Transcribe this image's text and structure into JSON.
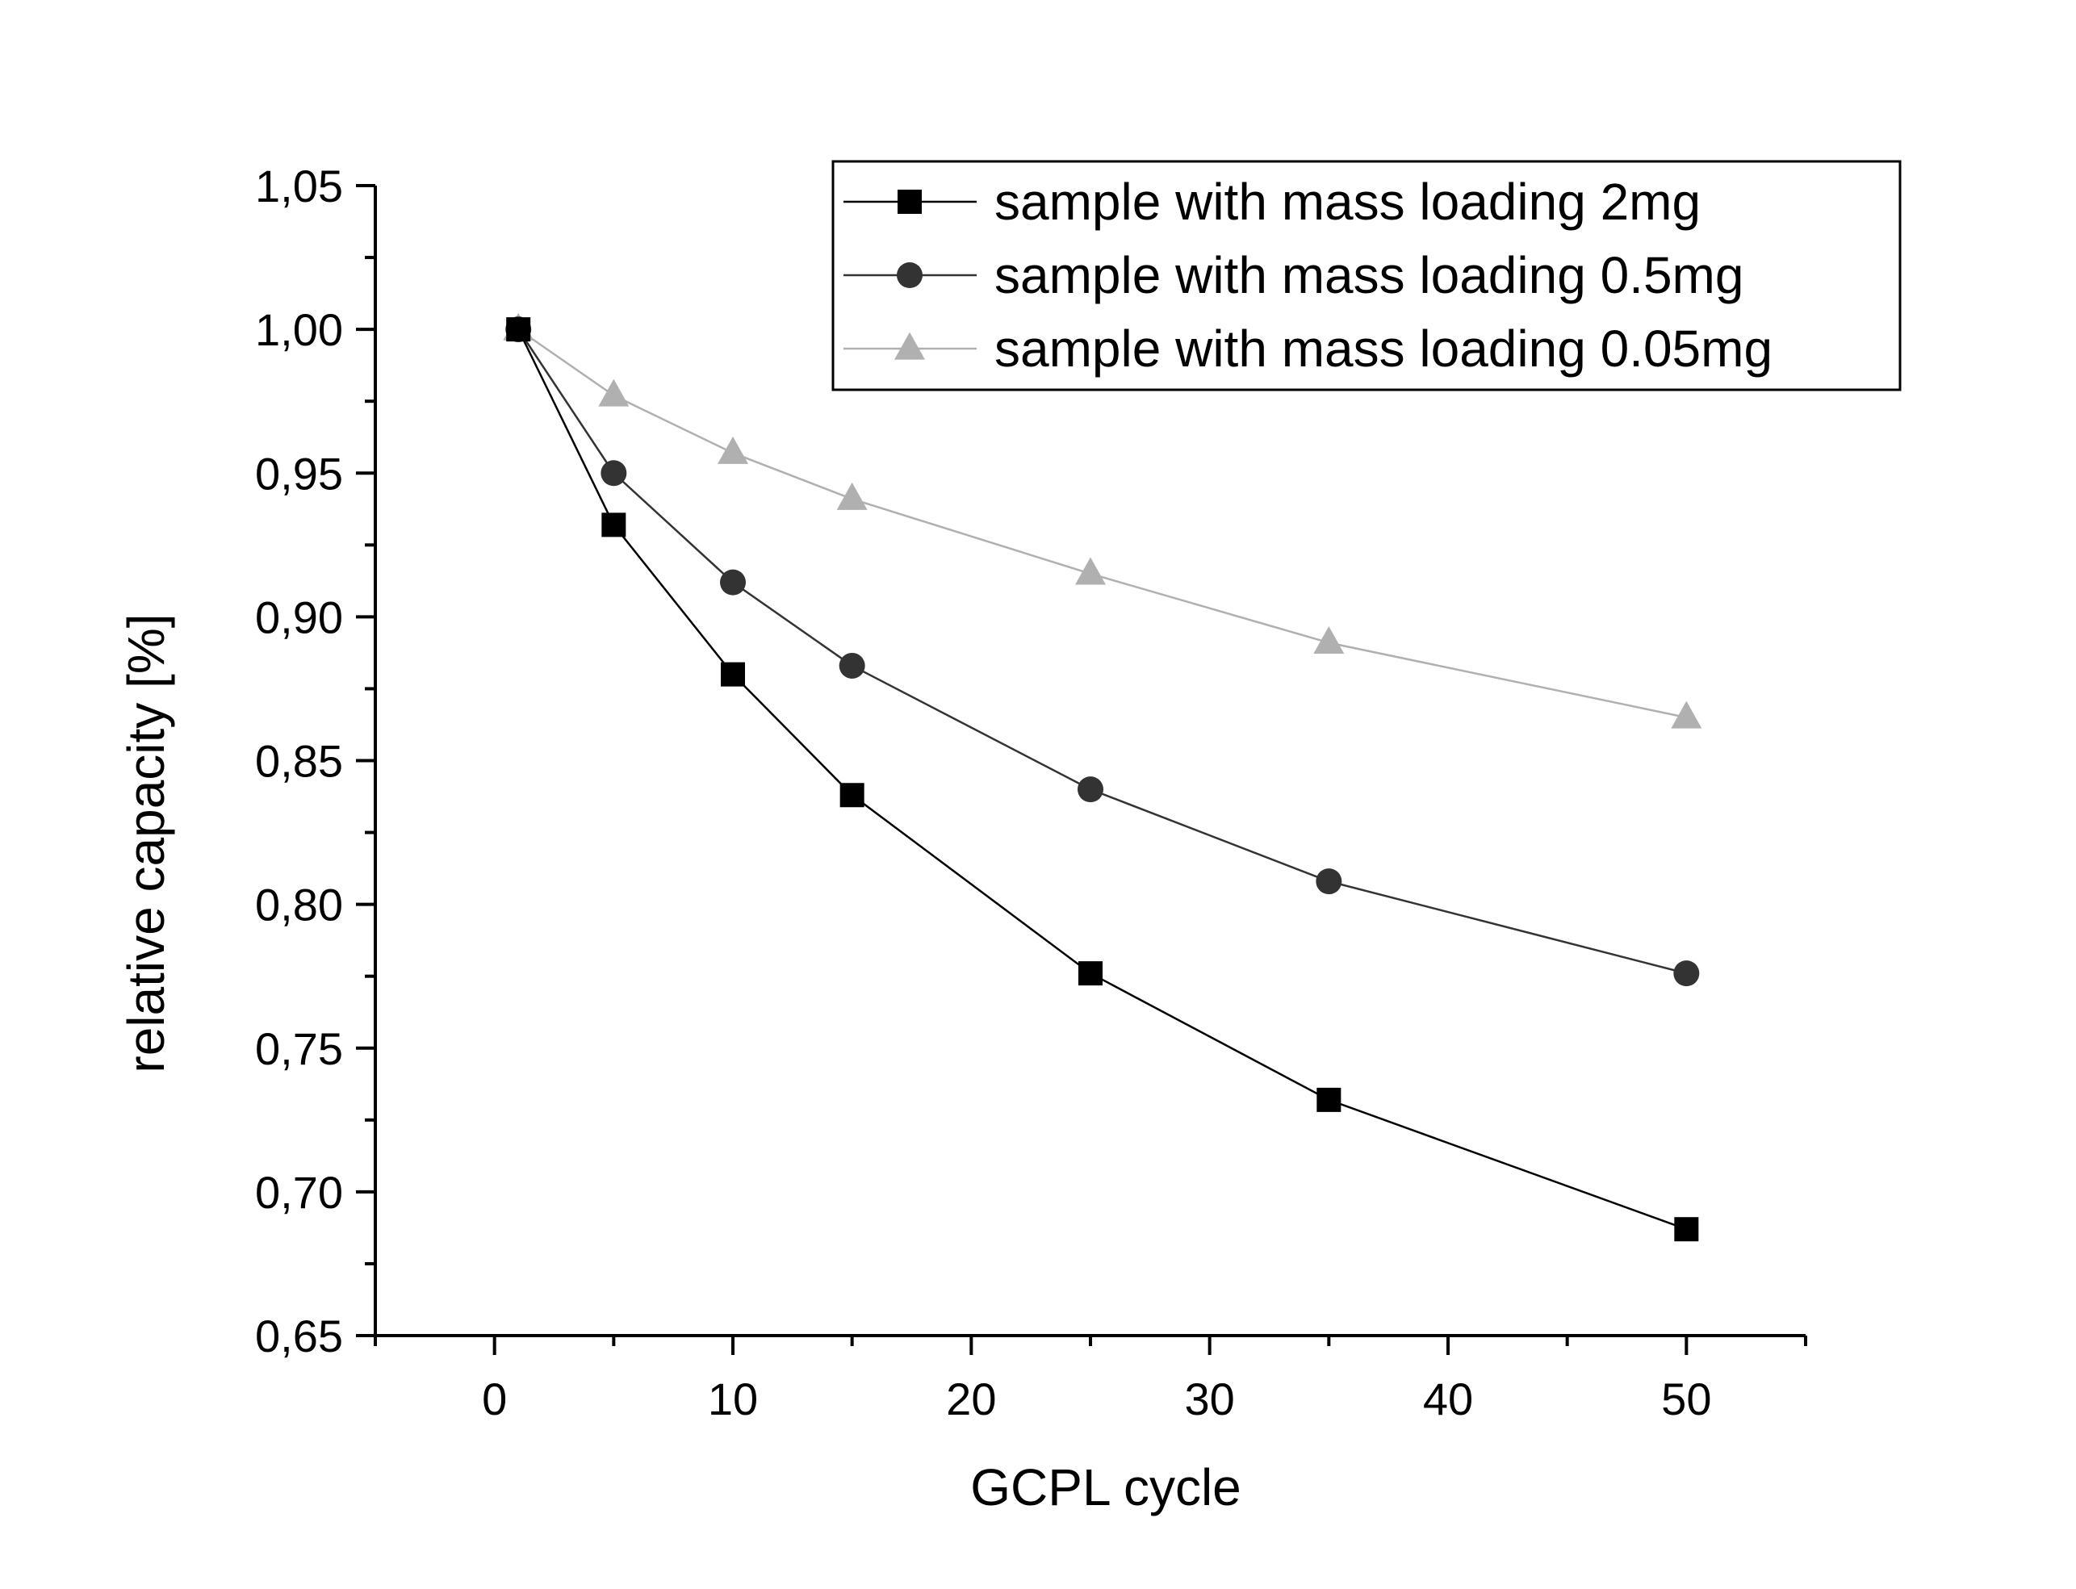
{
  "chart_data": {
    "type": "line",
    "xlabel": "GCPL cycle",
    "ylabel": "relative capacity [%]",
    "xlim": [
      -5,
      55
    ],
    "ylim": [
      0.65,
      1.05
    ],
    "x_ticks": [
      0,
      10,
      20,
      30,
      40,
      50
    ],
    "x_tick_labels": [
      "0",
      "10",
      "20",
      "30",
      "40",
      "50"
    ],
    "y_ticks": [
      0.65,
      0.7,
      0.75,
      0.8,
      0.85,
      0.9,
      0.95,
      1.0,
      1.05
    ],
    "y_tick_labels": [
      "0,65",
      "0,70",
      "0,75",
      "0,80",
      "0,85",
      "0,90",
      "0,95",
      "1,00",
      "1,05"
    ],
    "x_minor_ticks": [
      -5,
      5,
      15,
      25,
      35,
      45,
      55
    ],
    "y_minor_ticks": [
      0.675,
      0.725,
      0.775,
      0.825,
      0.875,
      0.925,
      0.975,
      1.025
    ],
    "grid": false,
    "legend_position": "top-right",
    "series": [
      {
        "name": "sample with mass loading 2mg",
        "marker": "square",
        "color": "#000000",
        "x": [
          1,
          5,
          10,
          15,
          25,
          35,
          50
        ],
        "y": [
          1.0,
          0.932,
          0.88,
          0.838,
          0.776,
          0.732,
          0.687
        ]
      },
      {
        "name": "sample with mass loading 0.5mg",
        "marker": "circle",
        "color": "#333333",
        "x": [
          1,
          5,
          10,
          15,
          25,
          35,
          50
        ],
        "y": [
          1.0,
          0.95,
          0.912,
          0.883,
          0.84,
          0.808,
          0.776
        ]
      },
      {
        "name": "sample with mass loading 0.05mg",
        "marker": "triangle",
        "color": "#b0b0b0",
        "x": [
          1,
          5,
          10,
          15,
          25,
          35,
          50
        ],
        "y": [
          1.0,
          0.977,
          0.957,
          0.941,
          0.915,
          0.891,
          0.865
        ]
      }
    ]
  }
}
